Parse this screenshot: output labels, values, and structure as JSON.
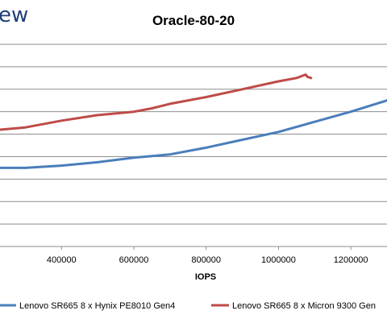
{
  "brand": {
    "text": "ew"
  },
  "chart_data": {
    "type": "line",
    "title": "Oracle-80-20",
    "xlabel": "IOPS",
    "ylabel": "",
    "xlim": [
      230000,
      1300000
    ],
    "ylim": [
      0,
      9
    ],
    "x_ticks": [
      400000,
      600000,
      800000,
      1000000,
      1200000
    ],
    "x_tick_labels": [
      "400000",
      "600000",
      "800000",
      "1000000",
      "1200000"
    ],
    "y_gridlines": [
      1,
      2,
      3,
      4,
      5,
      6,
      7,
      8,
      9
    ],
    "grid": true,
    "legend_position": "bottom",
    "series": [
      {
        "name": "Lenovo SR665 8 x Hynix PE8010 Gen4",
        "color": "#4a7ebb",
        "x": [
          230000,
          300000,
          400000,
          500000,
          600000,
          700000,
          800000,
          900000,
          1000000,
          1100000,
          1200000,
          1300000
        ],
        "y": [
          3.5,
          3.5,
          3.6,
          3.75,
          3.95,
          4.1,
          4.4,
          4.75,
          5.1,
          5.55,
          6.0,
          6.5
        ]
      },
      {
        "name": "Lenovo SR665 8 x Micron 9300 Gen",
        "color": "#be4b48",
        "x": [
          230000,
          300000,
          400000,
          500000,
          600000,
          650000,
          700000,
          800000,
          900000,
          1000000,
          1050000,
          1075000,
          1080000,
          1090000
        ],
        "y": [
          5.2,
          5.3,
          5.6,
          5.85,
          6.0,
          6.15,
          6.35,
          6.65,
          7.0,
          7.35,
          7.5,
          7.65,
          7.55,
          7.5
        ]
      }
    ]
  }
}
